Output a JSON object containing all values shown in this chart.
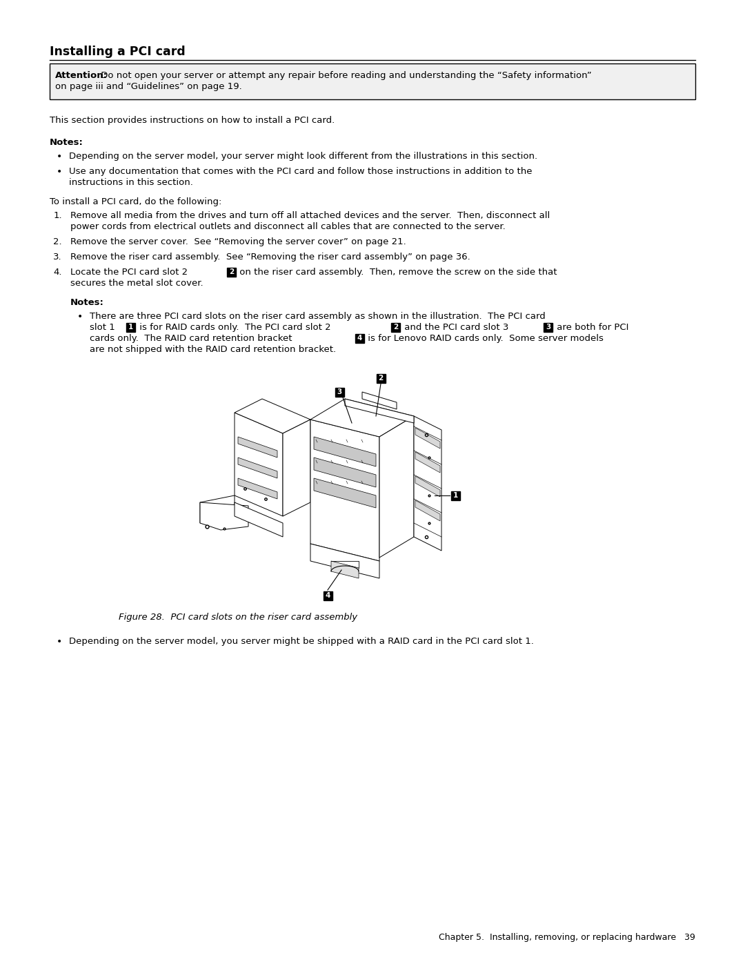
{
  "bg_color": "#ffffff",
  "title": "Installing a PCI card",
  "attn_bold": "Attention:",
  "attn_text": " Do not open your server or attempt any repair before reading and understanding the “Safety information”\non page iii and “Guidelines” on page 19.",
  "section_text": "This section provides instructions on how to install a PCI card.",
  "notes_heading": "Notes:",
  "notes_bullets": [
    "Depending on the server model, your server might look different from the illustrations in this section.",
    "Use any documentation that comes with the PCI card and follow those instructions in addition to the\ninstructions in this section."
  ],
  "install_intro": "To install a PCI card, do the following:",
  "step1_line1": "Remove all media from the drives and turn off all attached devices and the server.  Then, disconnect all",
  "step1_line2": "power cords from electrical outlets and disconnect all cables that are connected to the server.",
  "step2": "Remove the server cover.  See “Removing the server cover” on page 21.",
  "step3": "Remove the riser card assembly.  See “Removing the riser card assembly” on page 36.",
  "step4_pre": "Locate the PCI card slot 2 ",
  "step4_post": " on the riser card assembly.  Then, remove the screw on the side that",
  "step4_line2": "secures the metal slot cover.",
  "inner_notes_heading": "Notes:",
  "inner_line1": "There are three PCI card slots on the riser card assembly as shown in the illustration.  The PCI card",
  "inner_line2_p1": "slot 1 ",
  "inner_line2_p2": " is for RAID cards only.  The PCI card slot 2 ",
  "inner_line2_p3": " and the PCI card slot 3 ",
  "inner_line2_p4": " are both for PCI",
  "inner_line3_p1": "cards only.  The RAID card retention bracket ",
  "inner_line3_p2": " is for Lenovo RAID cards only.  Some server models",
  "inner_line4": "are not shipped with the RAID card retention bracket.",
  "figure_caption": "Figure 28.  PCI card slots on the riser card assembly",
  "extra_bullet": "Depending on the server model, you server might be shipped with a RAID card in the PCI card slot 1.",
  "footer": "Chapter 5.  Installing, removing, or replacing hardware   39"
}
